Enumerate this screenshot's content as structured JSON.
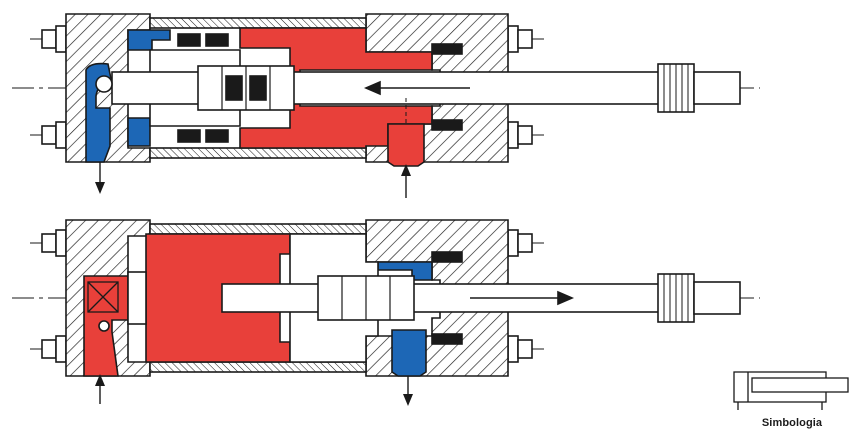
{
  "diagram": {
    "symbol_caption": "Simbologia",
    "colors": {
      "pressure": "#e8403a",
      "exhaust": "#1d67b6",
      "line": "#1a1a1a",
      "background": "#ffffff",
      "metal": "#ffffff"
    },
    "views": [
      {
        "name": "retracting",
        "flow_arrow": "left",
        "red_port": "rod-end",
        "blue_port": "cap-end"
      },
      {
        "name": "extending",
        "flow_arrow": "right",
        "red_port": "cap-end",
        "blue_port": "rod-end"
      }
    ]
  }
}
